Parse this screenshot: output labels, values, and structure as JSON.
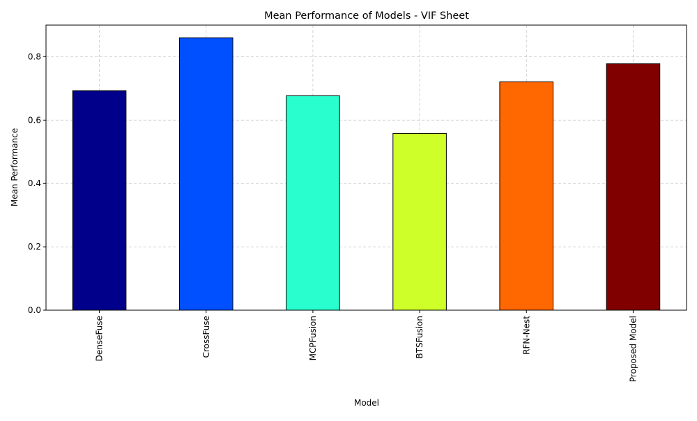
{
  "chart_data": {
    "type": "bar",
    "title": "Mean Performance of Models - VIF Sheet",
    "xlabel": "Model",
    "ylabel": "Mean Performance",
    "categories": [
      "DenseFuse",
      "CrossFuse",
      "MCPFusion",
      "BTSFusion",
      "RFN-Nest",
      "Proposed Model"
    ],
    "values": [
      0.693,
      0.86,
      0.677,
      0.558,
      0.721,
      0.778
    ],
    "colors": [
      "#00008b",
      "#0050ff",
      "#29ffce",
      "#ceff29",
      "#ff6800",
      "#800000"
    ],
    "ylim": [
      0,
      0.9
    ],
    "yticks": [
      0.0,
      0.2,
      0.4,
      0.6,
      0.8
    ],
    "ytick_labels": [
      "0.0",
      "0.2",
      "0.4",
      "0.6",
      "0.8"
    ],
    "grid": true,
    "legend": "none"
  }
}
